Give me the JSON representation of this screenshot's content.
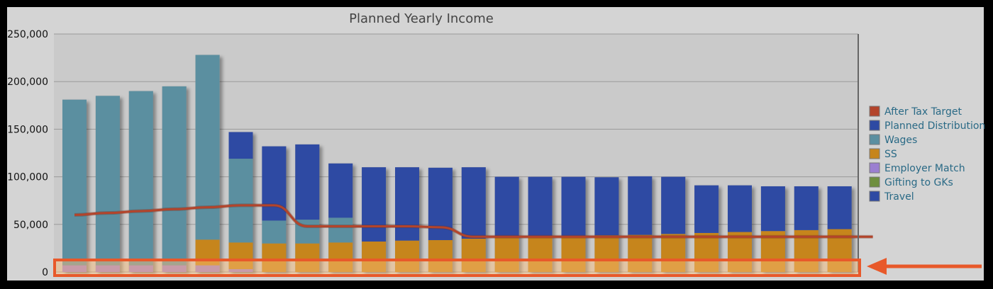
{
  "chart_data": {
    "type": "bar",
    "stacked": true,
    "title": "Planned Yearly Income",
    "xlabel": "",
    "ylabel": "",
    "ylim": [
      0,
      250000
    ],
    "yticks": [
      "0",
      "50,000",
      "100,000",
      "150,000",
      "200,000",
      "250,000"
    ],
    "grid": true,
    "legend_position": "right",
    "categories": [
      "",
      "",
      "",
      "",
      "",
      "",
      "",
      "",
      "",
      "",
      "",
      "",
      "",
      "",
      "",
      "",
      "",
      "",
      "",
      "",
      "",
      "",
      "",
      "",
      ""
    ],
    "series": [
      {
        "name": "Employer Match",
        "color": "#9b7fd1",
        "values": [
          7000,
          7000,
          7000,
          7000,
          7000,
          3000,
          0,
          0,
          0,
          0,
          0,
          0,
          0,
          0,
          0,
          0,
          0,
          0,
          0,
          0,
          0,
          0,
          0,
          0,
          0
        ]
      },
      {
        "name": "SS",
        "color": "#c6851c",
        "values": [
          0,
          0,
          0,
          0,
          27000,
          28000,
          30000,
          30000,
          31000,
          32000,
          33000,
          33500,
          35000,
          36000,
          37000,
          38000,
          38500,
          39000,
          40000,
          41000,
          42000,
          43000,
          44000,
          45000,
          0
        ]
      },
      {
        "name": "Wages",
        "color": "#5b8fa0",
        "values": [
          174000,
          178000,
          183000,
          188000,
          194000,
          88000,
          24000,
          25000,
          26000,
          0,
          0,
          0,
          0,
          0,
          0,
          0,
          0,
          0,
          0,
          0,
          0,
          0,
          0,
          0,
          0
        ]
      },
      {
        "name": "Planned Distribution",
        "color": "#2e4aa3",
        "values": [
          0,
          0,
          0,
          0,
          0,
          28000,
          78000,
          79000,
          57000,
          78000,
          77000,
          76000,
          75000,
          64000,
          63000,
          62000,
          61000,
          61500,
          60000,
          50000,
          49000,
          47000,
          46000,
          45000,
          0
        ]
      },
      {
        "name": "Gifting to GKs",
        "color": "#6f8f3f",
        "values": [
          0,
          0,
          0,
          0,
          0,
          0,
          0,
          0,
          0,
          0,
          0,
          0,
          0,
          0,
          0,
          0,
          0,
          0,
          0,
          0,
          0,
          0,
          0,
          0,
          0
        ]
      },
      {
        "name": "Travel",
        "color": "#2e4aa3",
        "values": [
          0,
          0,
          0,
          0,
          0,
          0,
          0,
          0,
          0,
          0,
          0,
          0,
          0,
          0,
          0,
          0,
          0,
          0,
          0,
          0,
          0,
          0,
          0,
          0,
          0
        ]
      }
    ],
    "line_series": [
      {
        "name": "After Tax Target",
        "color": "#b3442b",
        "values": [
          60000,
          62000,
          64000,
          66000,
          68000,
          70000,
          70000,
          48000,
          48000,
          48000,
          48000,
          47000,
          37000,
          37000,
          37000,
          37000,
          37000,
          37000,
          37000,
          37000,
          37000,
          37000,
          37000,
          37000,
          37000
        ]
      }
    ],
    "legend": [
      {
        "name": "After Tax Target",
        "color": "#b3442b"
      },
      {
        "name": "Planned Distribution",
        "color": "#2e4aa3"
      },
      {
        "name": "Wages",
        "color": "#5b8fa0"
      },
      {
        "name": "SS",
        "color": "#c6851c"
      },
      {
        "name": "Employer Match",
        "color": "#9b7fd1"
      },
      {
        "name": "Gifting to GKs",
        "color": "#6f8f3f"
      },
      {
        "name": "Travel",
        "color": "#2e4aa3"
      }
    ]
  },
  "annotation": {
    "highlight_color": "#e8592a",
    "arrow_color": "#e8592a"
  }
}
